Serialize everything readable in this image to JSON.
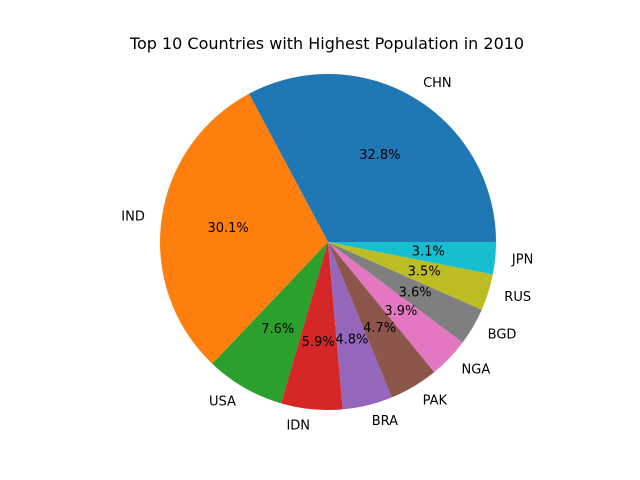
{
  "chart_data": {
    "type": "pie",
    "title": "Top 10 Countries with Highest Population in 2010",
    "start_angle_deg": 0,
    "direction": "counterclockwise",
    "slices": [
      {
        "label": "CHN",
        "value": 32.8,
        "pct_label": "32.8%",
        "color": "#1f77b4"
      },
      {
        "label": "IND",
        "value": 30.1,
        "pct_label": "30.1%",
        "color": "#ff7f0e"
      },
      {
        "label": "USA",
        "value": 7.6,
        "pct_label": "7.6%",
        "color": "#2ca02c"
      },
      {
        "label": "IDN",
        "value": 5.9,
        "pct_label": "5.9%",
        "color": "#d62728"
      },
      {
        "label": "BRA",
        "value": 4.8,
        "pct_label": "4.8%",
        "color": "#9467bd"
      },
      {
        "label": "PAK",
        "value": 4.7,
        "pct_label": "4.7%",
        "color": "#8c564b"
      },
      {
        "label": "NGA",
        "value": 3.9,
        "pct_label": "3.9%",
        "color": "#e377c2"
      },
      {
        "label": "BGD",
        "value": 3.6,
        "pct_label": "3.6%",
        "color": "#7f7f7f"
      },
      {
        "label": "RUS",
        "value": 3.5,
        "pct_label": "3.5%",
        "color": "#bcbd22"
      },
      {
        "label": "JPN",
        "value": 3.1,
        "pct_label": "3.1%",
        "color": "#17becf"
      }
    ]
  }
}
